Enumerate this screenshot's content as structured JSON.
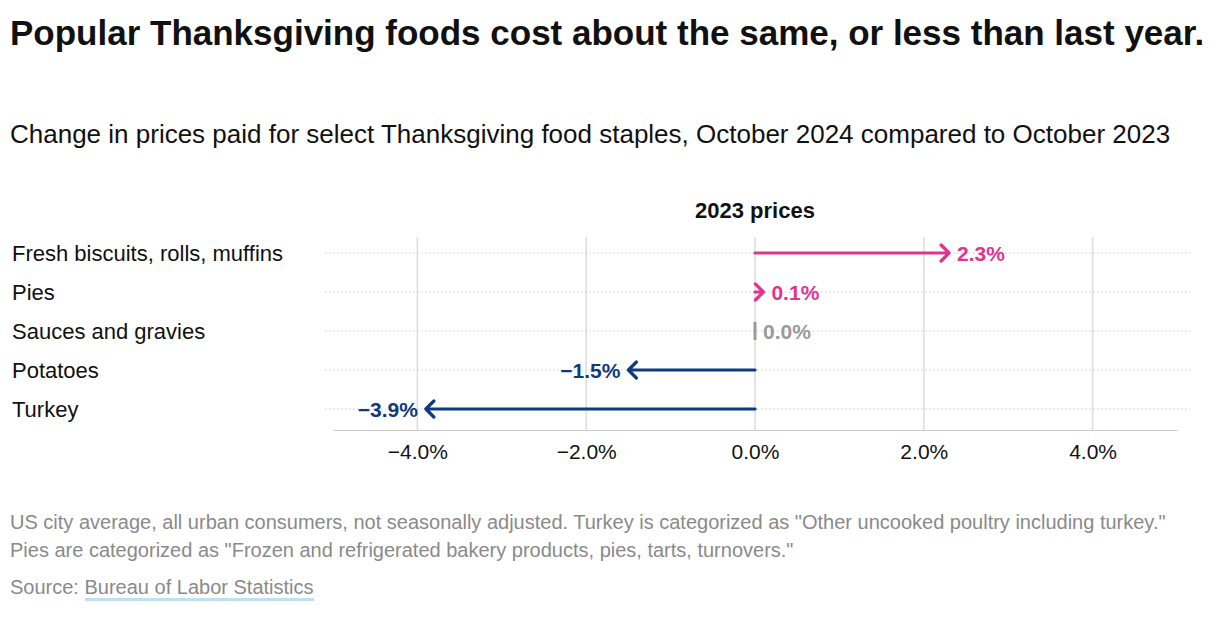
{
  "chart_data": {
    "type": "arrow",
    "orientation": "horizontal",
    "title": "Popular Thanksgiving foods cost about the same, or less than last year.",
    "subtitle": "Change in prices paid for select Thanksgiving food staples, October 2024 compared to October 2023",
    "annotation": "2023 prices",
    "categories": [
      "Fresh biscuits, rolls, muffins",
      "Pies",
      "Sauces and gravies",
      "Potatoes",
      "Turkey"
    ],
    "values": [
      2.3,
      0.1,
      0.0,
      -1.5,
      -3.9
    ],
    "value_labels": [
      "2.3%",
      "0.1%",
      "0.0%",
      "−1.5%",
      "−3.9%"
    ],
    "colors": [
      "#e0358f",
      "#e0358f",
      "#9a9a9a",
      "#0f3a7d",
      "#0f3a7d"
    ],
    "data_labels": true,
    "grid": true,
    "xlim": [
      -5,
      5
    ],
    "xticks": [
      {
        "value": -4,
        "label": "−4.0%"
      },
      {
        "value": -2,
        "label": "−2.0%"
      },
      {
        "value": 0,
        "label": "0.0%"
      },
      {
        "value": 2,
        "label": "2.0%"
      },
      {
        "value": 4,
        "label": "4.0%"
      }
    ],
    "note": "US city average, all urban consumers, not seasonally adjusted. Turkey is categorized as \"Other uncooked poultry including turkey.\" Pies are categorized as \"Frozen and refrigerated bakery products, pies, tarts, turnovers.\"",
    "source_label": "Source:",
    "source": "Bureau of Labor Statistics"
  }
}
